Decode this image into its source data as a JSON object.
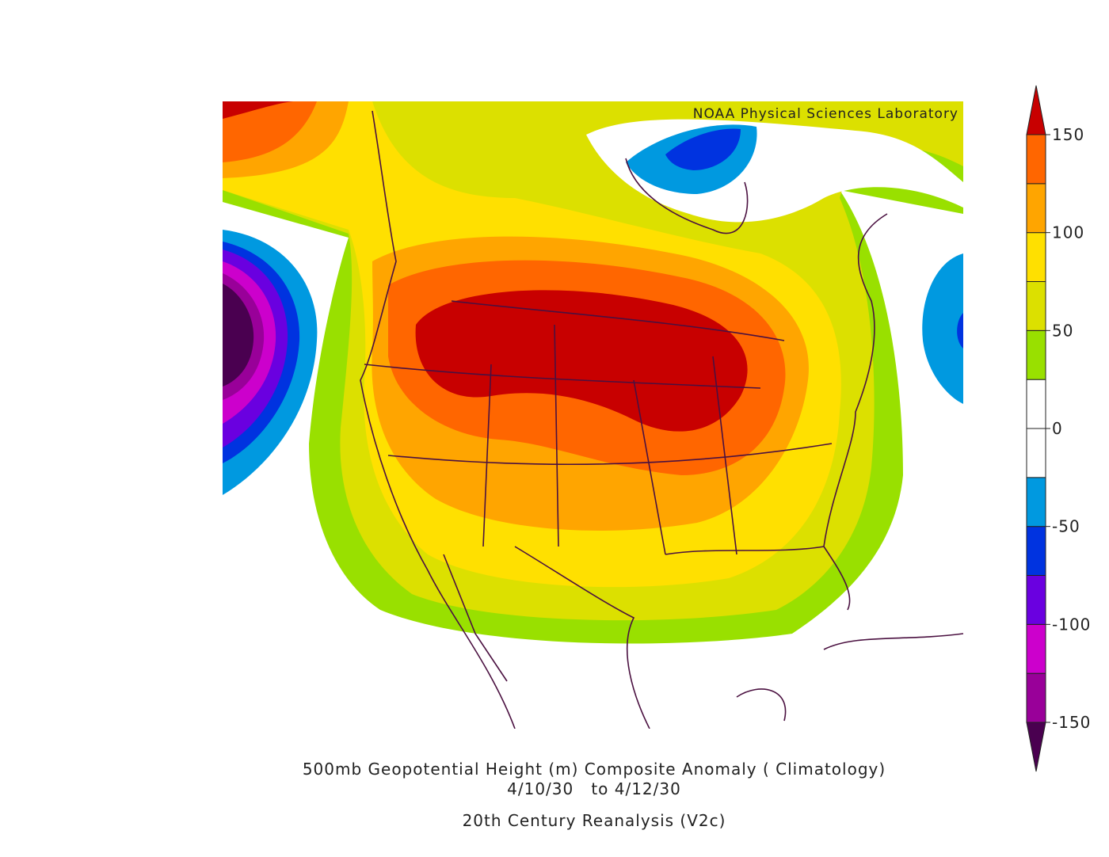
{
  "credit": "NOAA Physical Sciences Laboratory",
  "title": {
    "line1": "500mb Geopotential Height (m) Composite Anomaly ( Climatology)",
    "line2": "4/10/30   to 4/12/30",
    "line3": "20th Century Reanalysis (V2c)"
  },
  "colorbar": {
    "levels": [
      -150,
      -125,
      -100,
      -75,
      -50,
      -25,
      0,
      25,
      50,
      75,
      100,
      125,
      150
    ],
    "colors": [
      "#4a0050",
      "#990099",
      "#cc00cc",
      "#6a00e0",
      "#0033e0",
      "#0099e0",
      "#ffffff",
      "#ffffff",
      "#99e000",
      "#dce000",
      "#ffe000",
      "#ffa500",
      "#ff6600",
      "#c80000"
    ],
    "ticks": [
      -150,
      -100,
      -50,
      0,
      50,
      100,
      150
    ]
  }
}
